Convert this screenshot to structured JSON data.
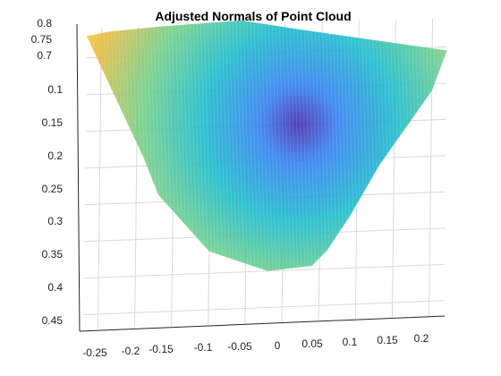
{
  "chart_data": {
    "type": "scatter",
    "title": "Adjusted Normals of Point Cloud",
    "xlabel": "",
    "ylabel": "",
    "zlabel": "",
    "x_ticks": [
      "-0.25",
      "-0.2",
      "-0.15",
      "-0.1",
      "-0.05",
      "0",
      "0.05",
      "0.1",
      "0.15",
      "0.2"
    ],
    "y_ticks": [
      "0.1",
      "0.15",
      "0.2",
      "0.25",
      "0.3",
      "0.35",
      "0.4",
      "0.45"
    ],
    "z_ticks": [
      "0.7",
      "0.75",
      "0.8"
    ],
    "x_range": [
      -0.27,
      0.22
    ],
    "y_range": [
      0.06,
      0.47
    ],
    "z_range": [
      0.7,
      0.8
    ],
    "grid": true,
    "colormap": "parula",
    "colormap_stops": [
      "#3e26a8",
      "#2c7bf0",
      "#14b9ca",
      "#6cce86",
      "#e9b938",
      "#f9fb0e"
    ],
    "outline": {
      "x": [
        -0.27,
        -0.24,
        -0.17,
        -0.06,
        0.02,
        0.22,
        0.2,
        0.13,
        0.09,
        0.06,
        0.04,
        -0.02,
        -0.1,
        -0.17,
        -0.19,
        -0.27
      ],
      "y": [
        0.07,
        0.065,
        0.06,
        0.055,
        0.07,
        0.105,
        0.16,
        0.26,
        0.33,
        0.375,
        0.395,
        0.4,
        0.37,
        0.29,
        0.24,
        0.07
      ]
    },
    "apex": {
      "x": 0.02,
      "y": 0.2
    },
    "surface_area": {
      "x": [
        -0.27,
        -0.24,
        -0.17,
        -0.06,
        0.02,
        0.22,
        0.2,
        0.13,
        0.09,
        0.06,
        0.04,
        -0.02,
        -0.1,
        -0.17,
        -0.19,
        -0.27
      ],
      "y": [
        0.07,
        0.065,
        0.06,
        0.055,
        0.07,
        0.105,
        0.16,
        0.26,
        0.33,
        0.375,
        0.395,
        0.4,
        0.37,
        0.29,
        0.24,
        0.07
      ]
    }
  }
}
